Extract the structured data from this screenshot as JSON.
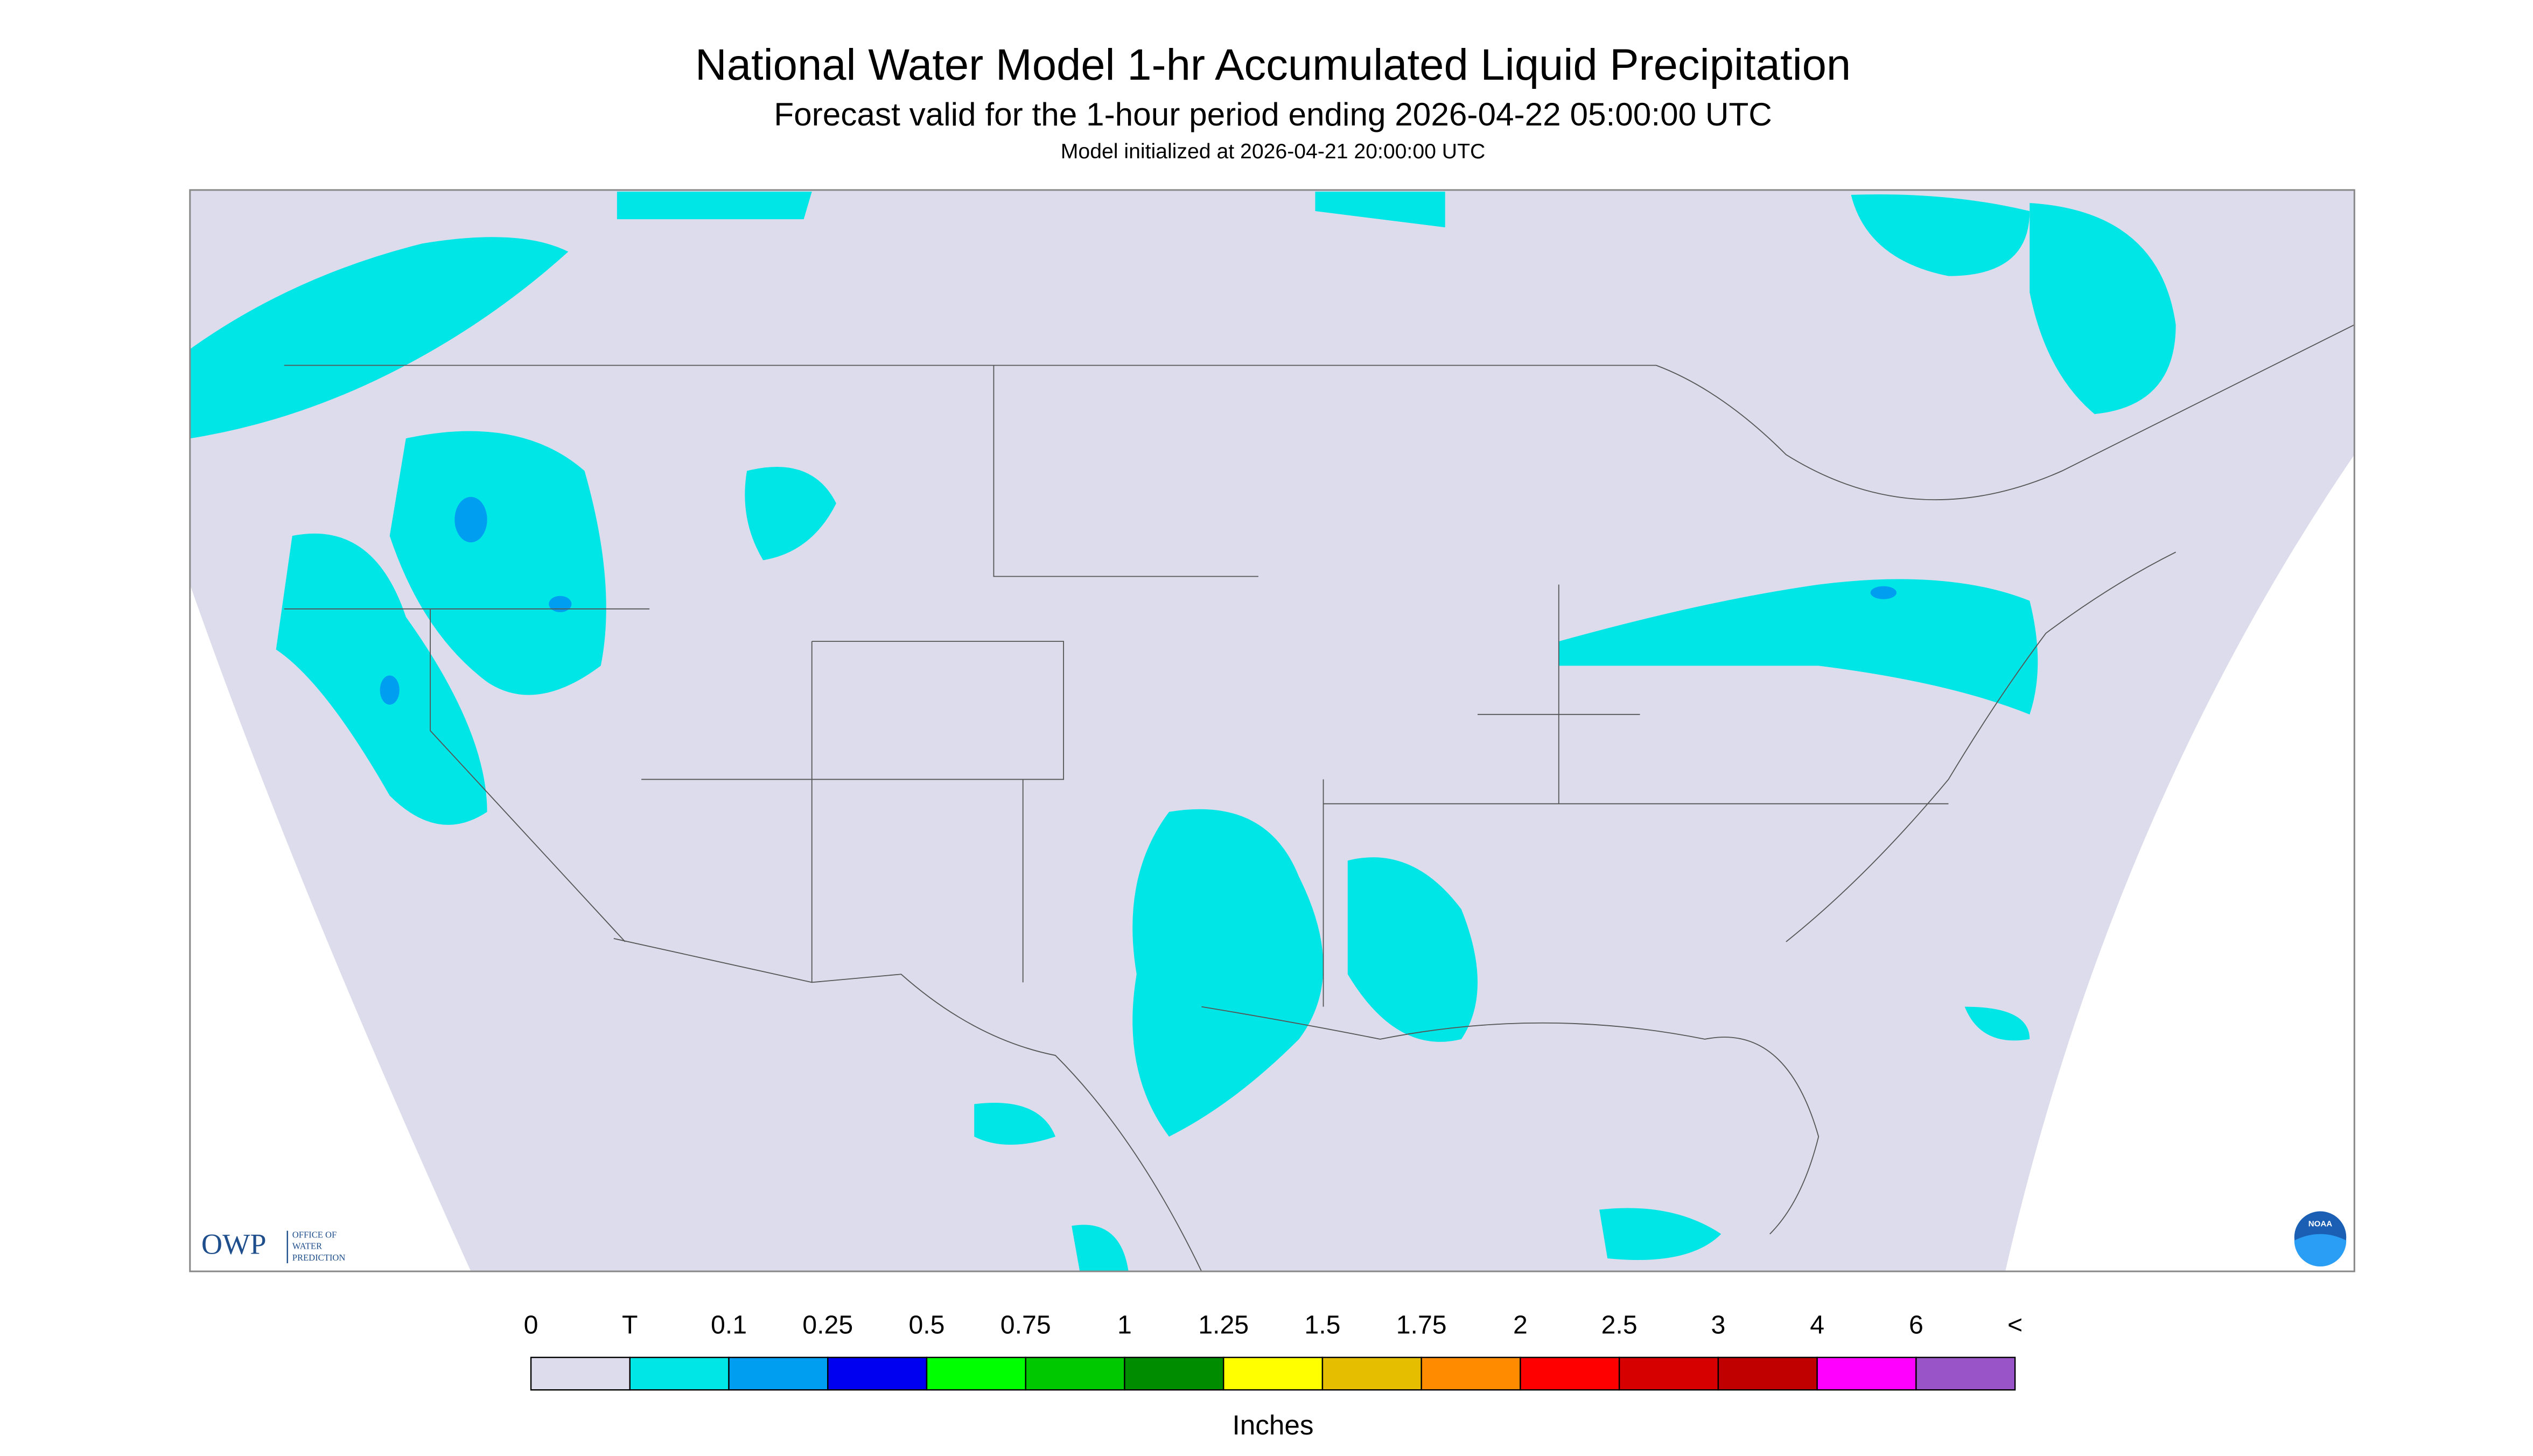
{
  "header": {
    "title": "National Water Model 1-hr Accumulated Liquid Precipitation",
    "subtitle": "Forecast valid for the 1-hour period ending 2026-04-22 05:00:00 UTC",
    "init": "Model initialized at 2026-04-21 20:00:00 UTC"
  },
  "logos": {
    "owp": "OWP",
    "owp_text": [
      "OFFICE OF",
      "WATER",
      "PREDICTION"
    ],
    "noaa": "NOAA"
  },
  "legend": {
    "labels": [
      "0",
      "T",
      "0.1",
      "0.25",
      "0.5",
      "0.75",
      "1",
      "1.25",
      "1.5",
      "1.75",
      "2",
      "2.5",
      "3",
      "4",
      "6",
      "<"
    ],
    "colors": [
      "#dcdcec",
      "#00e5e5",
      "#009ef0",
      "#0000f0",
      "#00ff00",
      "#00c800",
      "#008c00",
      "#ffff00",
      "#e6be00",
      "#ff8c00",
      "#ff0000",
      "#d70000",
      "#c00000",
      "#ff00ff",
      "#9955c8"
    ],
    "unit": "Inches"
  }
}
